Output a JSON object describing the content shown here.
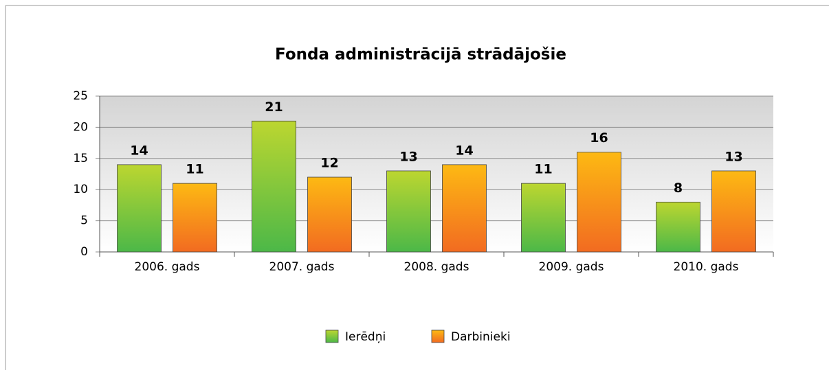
{
  "chart_data": {
    "type": "bar",
    "title": "Fonda administrācijā strādājošie",
    "categories": [
      "2006. gads",
      "2007. gads",
      "2008. gads",
      "2009. gads",
      "2010. gads"
    ],
    "series": [
      {
        "name": "Ierēdņi",
        "color": "#bcd630",
        "values": [
          14,
          21,
          13,
          11,
          8
        ]
      },
      {
        "name": "Darbinieki",
        "color": "#fdb913",
        "values": [
          11,
          12,
          14,
          16,
          13
        ]
      }
    ],
    "ylim": [
      0,
      25
    ],
    "yticks": [
      0,
      5,
      10,
      15,
      20,
      25
    ],
    "grid": true,
    "legend": "bottom"
  }
}
